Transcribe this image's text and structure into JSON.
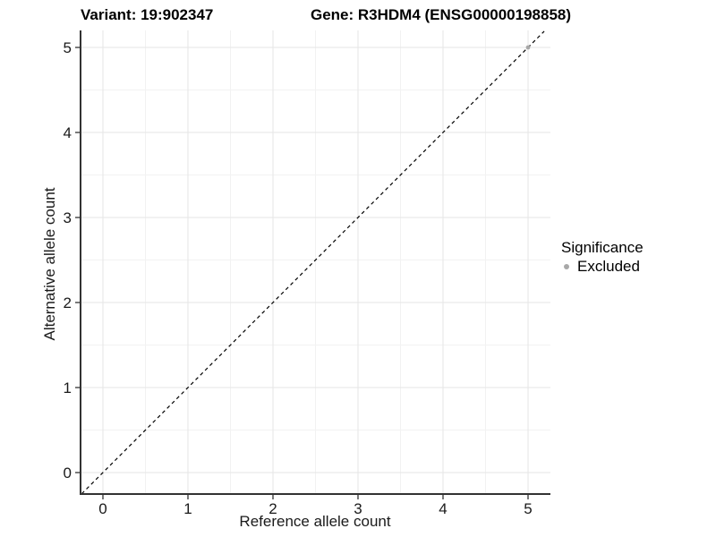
{
  "chart_data": {
    "type": "scatter",
    "titles": {
      "left": "Variant: 19:902347",
      "right": "Gene: R3HDM4 (ENSG00000198858)"
    },
    "xlabel": "Reference allele count",
    "ylabel": "Alternative allele count",
    "xticks": [
      0,
      1,
      2,
      3,
      4,
      5
    ],
    "yticks": [
      0,
      1,
      2,
      3,
      4,
      5
    ],
    "xlim": [
      -0.26,
      5.26
    ],
    "ylim": [
      -0.25,
      5.19
    ],
    "grid": {
      "major": true,
      "minor": true,
      "minor_step": 0.5
    },
    "identity_line": {
      "style": "dashed",
      "equation": "y = x",
      "from": [
        -0.25,
        -0.25
      ],
      "to": [
        5.19,
        5.19
      ]
    },
    "series": [
      {
        "name": "Excluded",
        "color": "#a8a8a8",
        "point_radius": 2.4,
        "points": [
          [
            5,
            5
          ]
        ]
      }
    ],
    "legend": {
      "title": "Significance",
      "position": "right",
      "items": [
        {
          "label": "Excluded",
          "color": "#a8a8a8"
        }
      ]
    }
  },
  "colors": {
    "background": "#ffffff",
    "grid_major": "#e5e5e5",
    "grid_minor": "#f2f2f2",
    "axis_line": "#333333",
    "tick_mark": "#333333",
    "tick_label": "#1a1a1a",
    "title_text": "#000000",
    "identity_line": "#000000"
  }
}
